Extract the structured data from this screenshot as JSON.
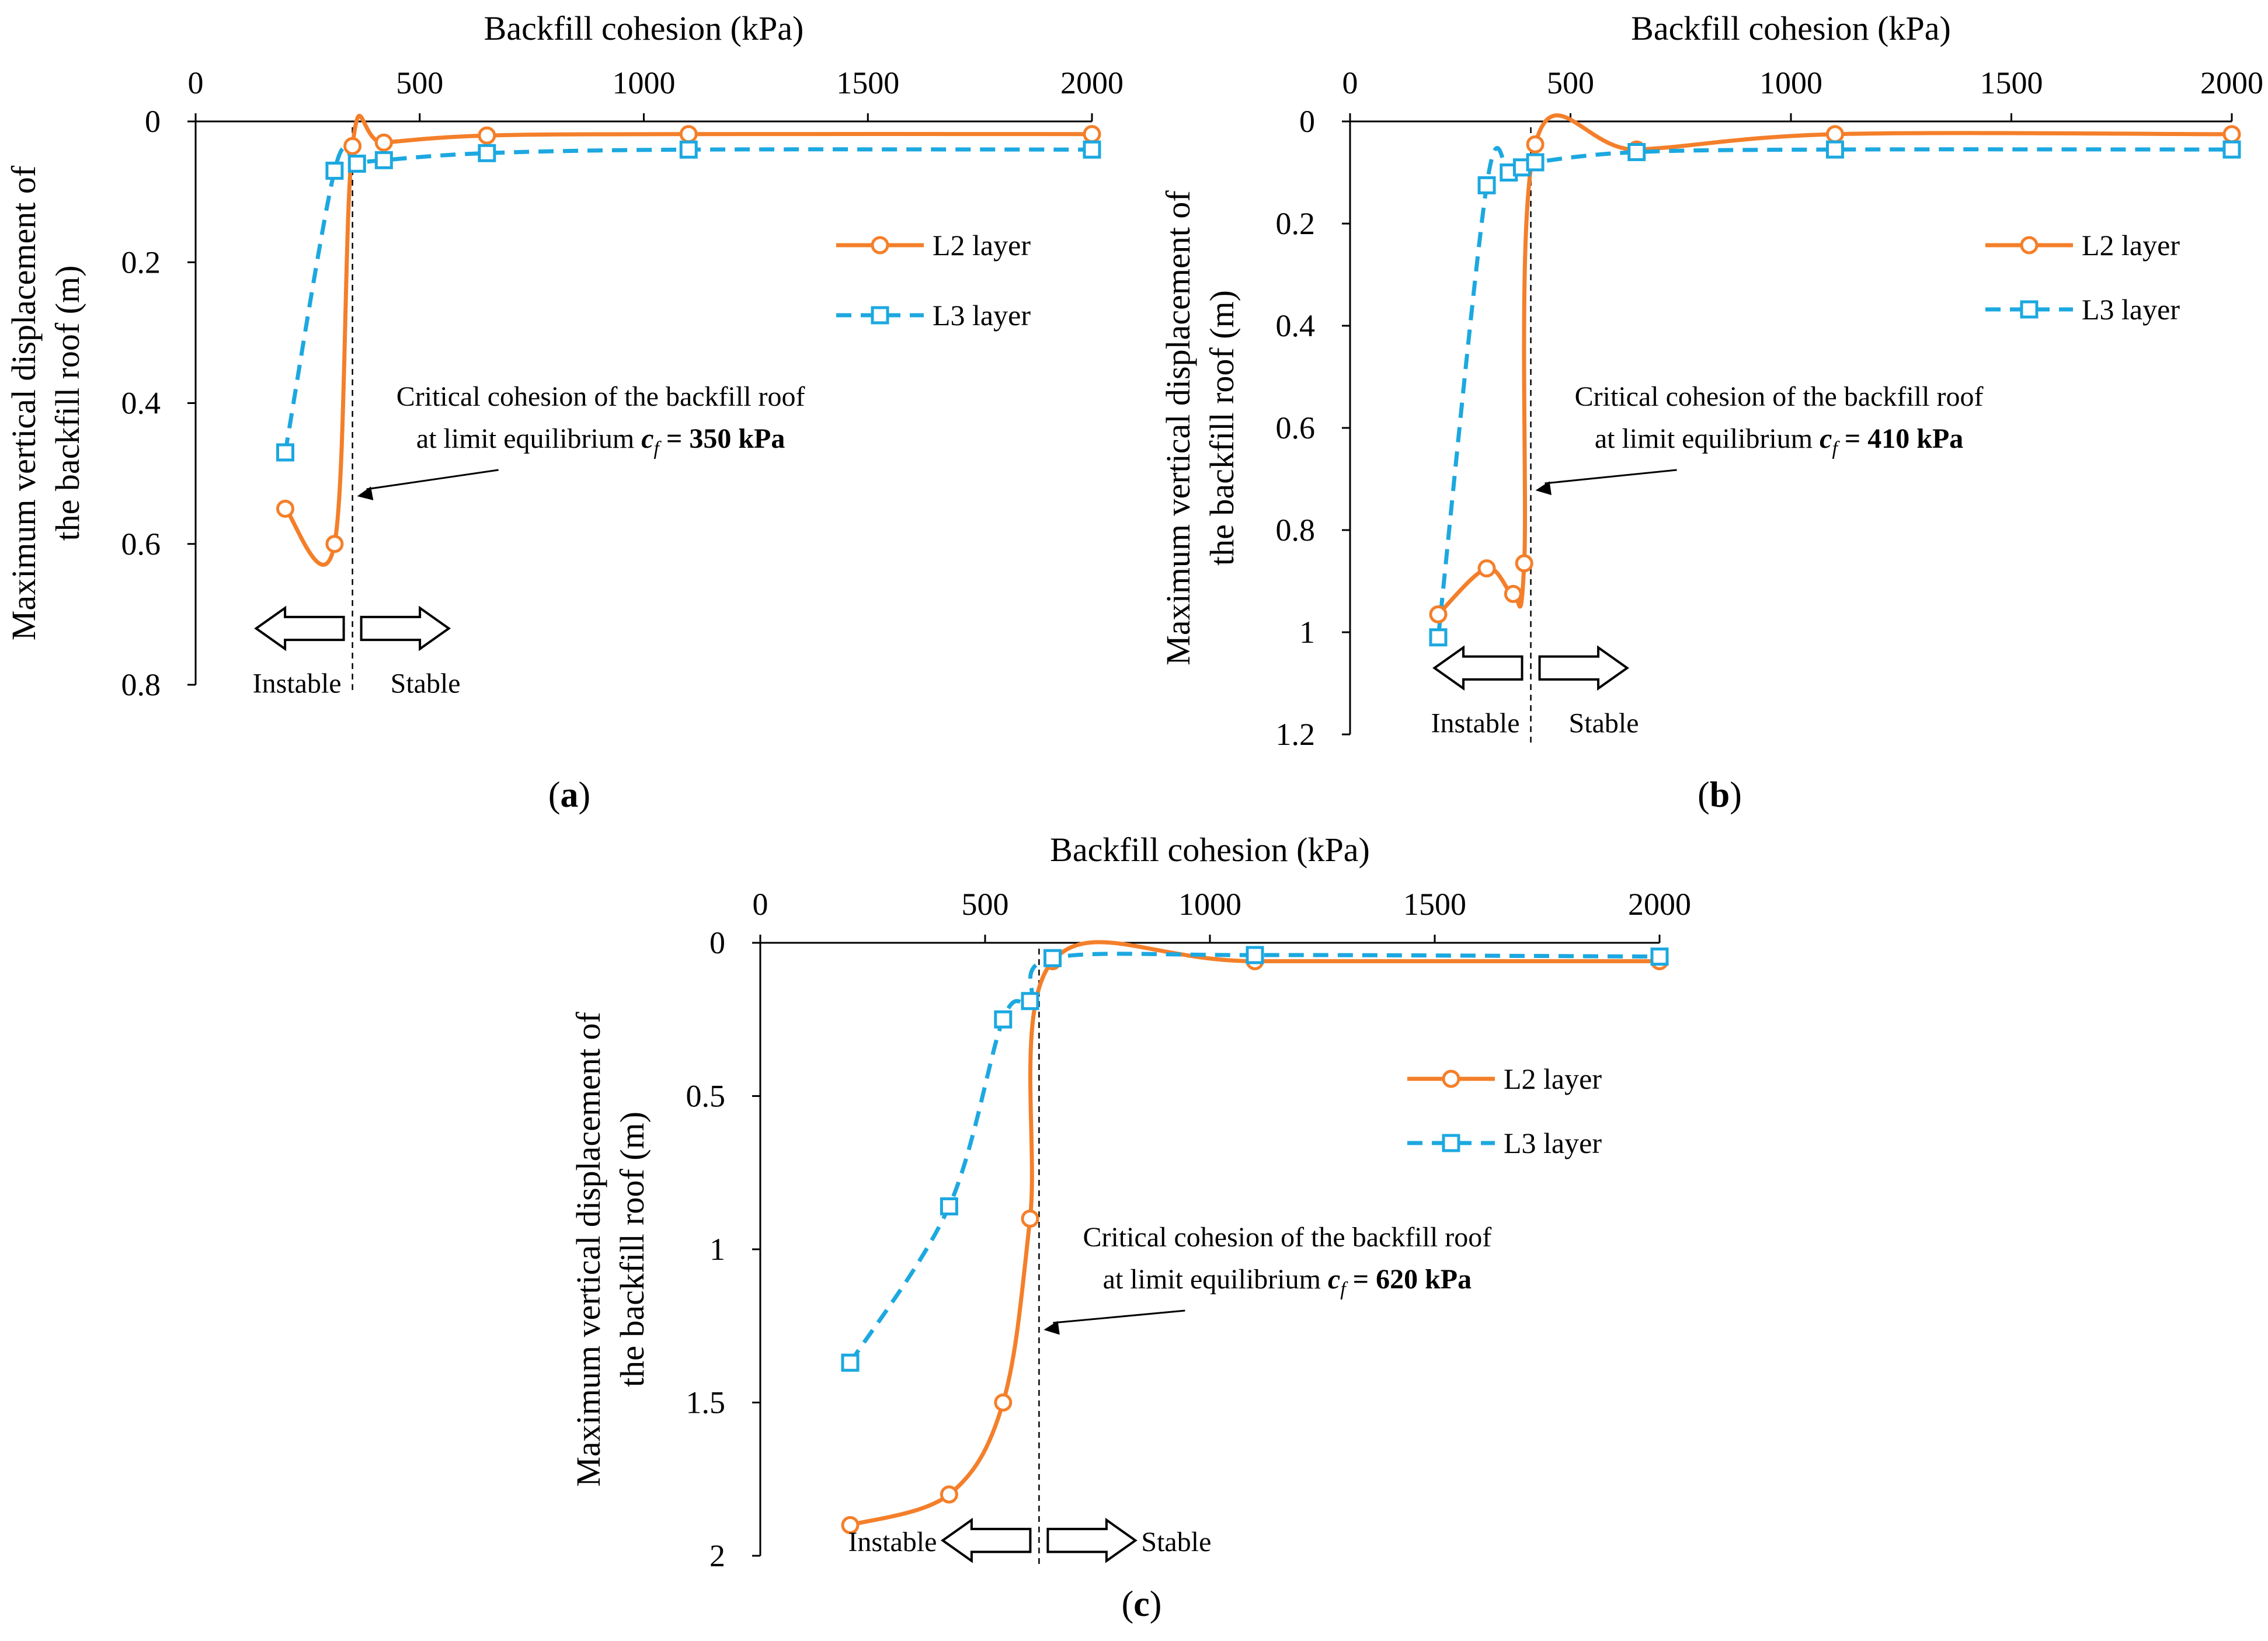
{
  "chart_data": [
    {
      "type": "line",
      "panel_label": "a",
      "title": "",
      "xlabel": "Backfill cohesion (kPa)",
      "ylabel_line1": "Maximum vertical displacement of",
      "ylabel_line2": "the backfill roof (m)",
      "xlim": [
        0,
        2000
      ],
      "ylim": [
        0,
        0.8
      ],
      "y_inverted": true,
      "x_axis_position": "top",
      "xticks": [
        0,
        500,
        1000,
        1500,
        2000
      ],
      "xtick_labels": [
        "0",
        "500",
        "1000",
        "1500",
        "2000"
      ],
      "yticks": [
        0,
        0.2,
        0.4,
        0.6,
        0.8
      ],
      "ytick_labels": [
        "0",
        "0.2",
        "0.4",
        "0.6",
        "0.8"
      ],
      "grid": false,
      "legend_position": "right",
      "series": [
        {
          "name": "L2 layer",
          "color": "#F47F2A",
          "dash": "solid",
          "marker": "circle",
          "x": [
            200,
            310,
            350,
            420,
            650,
            1100,
            2000
          ],
          "y": [
            0.55,
            0.6,
            0.035,
            0.03,
            0.02,
            0.018,
            0.018
          ]
        },
        {
          "name": "L3 layer",
          "color": "#1CA8E0",
          "dash": "dashed",
          "marker": "square",
          "x": [
            200,
            310,
            360,
            420,
            650,
            1100,
            2000
          ],
          "y": [
            0.47,
            0.07,
            0.06,
            0.055,
            0.045,
            0.04,
            0.04
          ]
        }
      ],
      "critical_value": 350,
      "annotation_line1": "Critical cohesion of the backfill roof",
      "annotation_line2": "at limit equilibrium ",
      "annotation_var": "c",
      "annotation_sub": "f",
      "annotation_value": " = 350 kPa",
      "arrow_y": 0.72,
      "label_instable": "Instable",
      "label_stable": "Stable"
    },
    {
      "type": "line",
      "panel_label": "b",
      "title": "",
      "xlabel": "Backfill cohesion (kPa)",
      "ylabel_line1": "Maximum vertical displacement of",
      "ylabel_line2": "the backfill roof (m)",
      "xlim": [
        0,
        2000
      ],
      "ylim": [
        0,
        1.2
      ],
      "y_inverted": true,
      "x_axis_position": "top",
      "xticks": [
        0,
        500,
        1000,
        1500,
        2000
      ],
      "xtick_labels": [
        "0",
        "500",
        "1000",
        "1500",
        "2000"
      ],
      "yticks": [
        0,
        0.2,
        0.4,
        0.6,
        0.8,
        1.0,
        1.2
      ],
      "ytick_labels": [
        "0",
        "0.2",
        "0.4",
        "0.6",
        "0.8",
        "1",
        "1.2"
      ],
      "grid": false,
      "legend_position": "right",
      "series": [
        {
          "name": "L2 layer",
          "color": "#F47F2A",
          "dash": "solid",
          "marker": "circle",
          "x": [
            200,
            310,
            370,
            395,
            420,
            650,
            1100,
            2000
          ],
          "y": [
            0.965,
            0.875,
            0.925,
            0.865,
            0.045,
            0.055,
            0.025,
            0.025
          ]
        },
        {
          "name": "L3 layer",
          "color": "#1CA8E0",
          "dash": "dashed",
          "marker": "square",
          "x": [
            200,
            310,
            360,
            390,
            420,
            650,
            1100,
            2000
          ],
          "y": [
            1.01,
            0.125,
            0.1,
            0.09,
            0.08,
            0.06,
            0.055,
            0.055
          ]
        }
      ],
      "critical_value": 410,
      "annotation_line1": "Critical cohesion of the backfill roof",
      "annotation_line2": "at limit equilibrium ",
      "annotation_var": "c",
      "annotation_sub": "f",
      "annotation_value": " = 410 kPa",
      "arrow_y": 1.07,
      "label_instable": "Instable",
      "label_stable": "Stable"
    },
    {
      "type": "line",
      "panel_label": "c",
      "title": "",
      "xlabel": "Backfill cohesion (kPa)",
      "ylabel_line1": "Maximum vertical displacement of",
      "ylabel_line2": "the backfill roof (m)",
      "xlim": [
        0,
        2000
      ],
      "ylim": [
        0,
        2
      ],
      "y_inverted": true,
      "x_axis_position": "top",
      "xticks": [
        0,
        500,
        1000,
        1500,
        2000
      ],
      "xtick_labels": [
        "0",
        "500",
        "1000",
        "1500",
        "2000"
      ],
      "yticks": [
        0,
        0.5,
        1.0,
        1.5,
        2.0
      ],
      "ytick_labels": [
        "0",
        "0.5",
        "1",
        "1.5",
        "2"
      ],
      "grid": false,
      "legend_position": "right",
      "series": [
        {
          "name": "L2 layer",
          "color": "#F47F2A",
          "dash": "solid",
          "marker": "circle",
          "x": [
            200,
            420,
            540,
            600,
            650,
            1100,
            2000
          ],
          "y": [
            1.9,
            1.8,
            1.5,
            0.9,
            0.06,
            0.06,
            0.06
          ]
        },
        {
          "name": "L3 layer",
          "color": "#1CA8E0",
          "dash": "dashed",
          "marker": "square",
          "x": [
            200,
            420,
            540,
            600,
            650,
            1100,
            2000
          ],
          "y": [
            1.37,
            0.86,
            0.25,
            0.19,
            0.05,
            0.04,
            0.045
          ]
        }
      ],
      "critical_value": 620,
      "annotation_line1": "Critical cohesion of the backfill roof",
      "annotation_line2": "at limit equilibrium ",
      "annotation_var": "c",
      "annotation_sub": "f",
      "annotation_value": " = 620 kPa",
      "arrow_y": 1.95,
      "label_instable": "Instable",
      "label_stable": "Stable"
    }
  ]
}
